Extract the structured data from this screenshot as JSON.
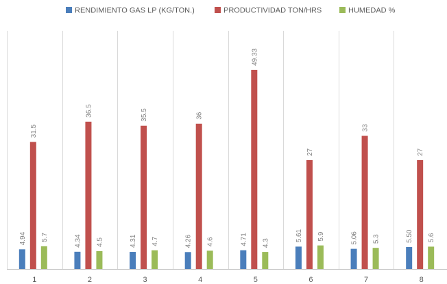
{
  "chart_data": {
    "type": "bar",
    "categories": [
      "1",
      "2",
      "3",
      "4",
      "5",
      "6",
      "7",
      "8"
    ],
    "series": [
      {
        "name": "RENDIMIENTO GAS LP  (KG/TON.)",
        "color": "#4a7ebb",
        "values": [
          4.94,
          4.34,
          4.31,
          4.26,
          4.71,
          5.61,
          5.06,
          5.5
        ],
        "labels": [
          "4.94",
          "4.34",
          "4.31",
          "4.26",
          "4.71",
          "5.61",
          "5.06",
          "5.50"
        ]
      },
      {
        "name": "PRODUCTIVIDAD TON/HRS",
        "color": "#c0504d",
        "values": [
          31.5,
          36.5,
          35.5,
          36,
          49.33,
          27,
          33,
          27
        ],
        "labels": [
          "31.5",
          "36.5",
          "35.5",
          "36",
          "49.33",
          "27",
          "33",
          "27"
        ]
      },
      {
        "name": "HUMEDAD %",
        "color": "#9bbb59",
        "values": [
          5.7,
          4.5,
          4.7,
          4.6,
          4.3,
          5.9,
          5.3,
          5.6
        ],
        "labels": [
          "5.7",
          "4.5",
          "4.7",
          "4.6",
          "4.3",
          "5.9",
          "5.3",
          "5.6"
        ]
      }
    ],
    "ylim": [
      0,
      52
    ],
    "legend_position": "top",
    "grid": "vertical-category-separators"
  }
}
